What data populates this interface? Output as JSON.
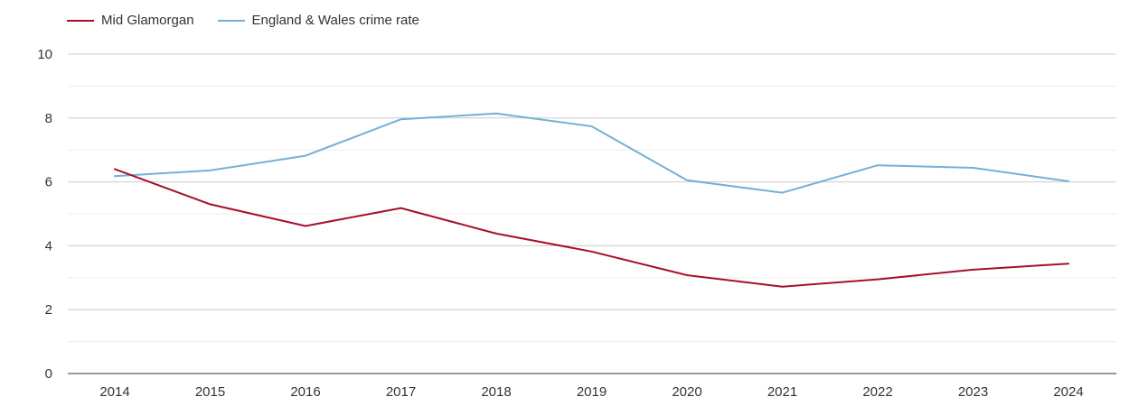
{
  "chart_data": {
    "type": "line",
    "title": "",
    "xlabel": "",
    "ylabel": "",
    "x": [
      "2014",
      "2015",
      "2016",
      "2017",
      "2018",
      "2019",
      "2020",
      "2021",
      "2022",
      "2023",
      "2024"
    ],
    "ylim": [
      0,
      10
    ],
    "yticks": [
      0,
      2,
      4,
      6,
      8,
      10
    ],
    "grid": true,
    "legend_position": "top-left",
    "series": [
      {
        "name": "Mid Glamorgan",
        "color": "#a50f2d",
        "values": [
          6.4,
          5.3,
          4.62,
          5.18,
          4.38,
          3.82,
          3.08,
          2.72,
          2.95,
          3.25,
          3.44
        ]
      },
      {
        "name": "England & Wales crime rate",
        "color": "#74b0d6",
        "values": [
          6.18,
          6.36,
          6.82,
          7.96,
          8.14,
          7.74,
          6.05,
          5.66,
          6.52,
          6.44,
          6.02
        ]
      }
    ]
  }
}
